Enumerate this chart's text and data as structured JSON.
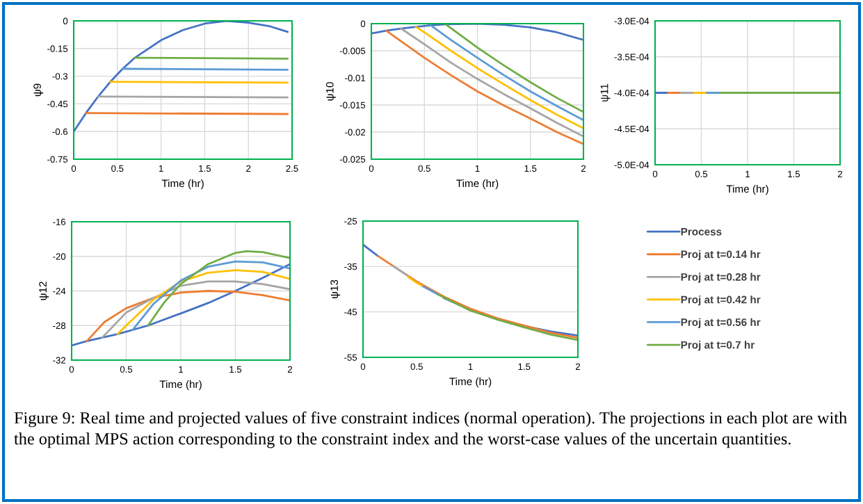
{
  "chart_data": [
    {
      "type": "line",
      "xlabel": "Time (hr)",
      "ylabel": "ψ9",
      "xlim": [
        0,
        2.5
      ],
      "ylim": [
        -0.75,
        0
      ],
      "xticks": [
        0,
        0.5,
        1,
        1.5,
        2,
        2.5
      ],
      "yticks": [
        0,
        -0.15,
        -0.3,
        -0.45,
        -0.6,
        -0.75
      ],
      "grid": true,
      "series": [
        {
          "color": "#4472c4",
          "x": [
            0,
            0.14,
            0.28,
            0.42,
            0.56,
            0.7,
            1.0,
            1.25,
            1.5,
            1.75,
            2.0,
            2.25,
            2.45
          ],
          "values": [
            -0.6,
            -0.5,
            -0.41,
            -0.33,
            -0.26,
            -0.2,
            -0.105,
            -0.05,
            -0.015,
            0,
            -0.01,
            -0.03,
            -0.06
          ]
        },
        {
          "color": "#ed7d31",
          "x": [
            0.14,
            2.45
          ],
          "values": [
            -0.5,
            -0.505
          ]
        },
        {
          "color": "#a5a5a5",
          "x": [
            0.28,
            2.45
          ],
          "values": [
            -0.41,
            -0.415
          ]
        },
        {
          "color": "#ffc000",
          "x": [
            0.42,
            2.45
          ],
          "values": [
            -0.33,
            -0.335
          ]
        },
        {
          "color": "#5b9bd5",
          "x": [
            0.56,
            2.45
          ],
          "values": [
            -0.26,
            -0.265
          ]
        },
        {
          "color": "#70ad47",
          "x": [
            0.7,
            2.45
          ],
          "values": [
            -0.2,
            -0.205
          ]
        }
      ]
    },
    {
      "type": "line",
      "xlabel": "Time (hr)",
      "ylabel": "ψ10",
      "xlim": [
        0,
        2
      ],
      "ylim": [
        -0.025,
        0
      ],
      "xticks": [
        0,
        0.5,
        1,
        1.5,
        2
      ],
      "yticks": [
        0,
        -0.005,
        -0.01,
        -0.015,
        -0.02,
        -0.025
      ],
      "grid": true,
      "series": [
        {
          "color": "#4472c4",
          "x": [
            0,
            0.14,
            0.28,
            0.42,
            0.56,
            0.7,
            1.0,
            1.25,
            1.5,
            1.75,
            2.0
          ],
          "values": [
            -0.0018,
            -0.0013,
            -0.0009,
            -0.0006,
            -0.0003,
            -0.0001,
            0,
            -0.0002,
            -0.0007,
            -0.0016,
            -0.003
          ]
        },
        {
          "color": "#ed7d31",
          "x": [
            0.14,
            0.5,
            0.75,
            1.0,
            1.25,
            1.5,
            1.75,
            2.0
          ],
          "values": [
            -0.0013,
            -0.0063,
            -0.0095,
            -0.0125,
            -0.0151,
            -0.0175,
            -0.02,
            -0.0222
          ]
        },
        {
          "color": "#a5a5a5",
          "x": [
            0.28,
            0.5,
            0.75,
            1.0,
            1.25,
            1.5,
            1.75,
            2.0
          ],
          "values": [
            -0.0009,
            -0.0038,
            -0.0072,
            -0.0102,
            -0.013,
            -0.0156,
            -0.0183,
            -0.0208
          ]
        },
        {
          "color": "#ffc000",
          "x": [
            0.42,
            0.5,
            0.75,
            1.0,
            1.25,
            1.5,
            1.75,
            2.0
          ],
          "values": [
            -0.0006,
            -0.0016,
            -0.005,
            -0.0082,
            -0.0112,
            -0.0141,
            -0.0168,
            -0.0193
          ]
        },
        {
          "color": "#5b9bd5",
          "x": [
            0.56,
            0.75,
            1.0,
            1.25,
            1.5,
            1.75,
            2.0
          ],
          "values": [
            -0.0003,
            -0.003,
            -0.0063,
            -0.0095,
            -0.0125,
            -0.0152,
            -0.0178
          ]
        },
        {
          "color": "#70ad47",
          "x": [
            0.7,
            1.0,
            1.25,
            1.5,
            1.75,
            2.0
          ],
          "values": [
            -0.0001,
            -0.0044,
            -0.0077,
            -0.0108,
            -0.0137,
            -0.0163
          ]
        }
      ]
    },
    {
      "type": "line",
      "xlabel": "Time (hr)",
      "ylabel": "ψ11",
      "xlim": [
        0,
        2
      ],
      "ylim": [
        -0.0005,
        -0.0003
      ],
      "xticks": [
        0,
        0.5,
        1,
        1.5,
        2
      ],
      "yticks": [
        {
          "value": -0.0003,
          "label": "-3.0E-04"
        },
        {
          "value": -0.00035,
          "label": "-3.5E-04"
        },
        {
          "value": -0.0004,
          "label": "-4.0E-04"
        },
        {
          "value": -0.00045,
          "label": "-4.5E-04"
        },
        {
          "value": -0.0005,
          "label": "-5.0E-04"
        }
      ],
      "grid": true,
      "series": [
        {
          "color": "#4472c4",
          "x": [
            0,
            0.14
          ],
          "values": [
            -0.0004,
            -0.0004
          ]
        },
        {
          "color": "#ed7d31",
          "x": [
            0.14,
            0.28
          ],
          "values": [
            -0.0004,
            -0.0004
          ]
        },
        {
          "color": "#a5a5a5",
          "x": [
            0.28,
            0.42
          ],
          "values": [
            -0.0004,
            -0.0004
          ]
        },
        {
          "color": "#ffc000",
          "x": [
            0.42,
            0.56
          ],
          "values": [
            -0.0004,
            -0.0004
          ]
        },
        {
          "color": "#5b9bd5",
          "x": [
            0.56,
            0.7
          ],
          "values": [
            -0.0004,
            -0.0004
          ]
        },
        {
          "color": "#70ad47",
          "x": [
            0.7,
            2
          ],
          "values": [
            -0.0004,
            -0.0004
          ]
        }
      ]
    },
    {
      "type": "line",
      "xlabel": "Time (hr)",
      "ylabel": "ψ12",
      "xlim": [
        0,
        2
      ],
      "ylim": [
        -32,
        -16
      ],
      "xticks": [
        0,
        0.5,
        1,
        1.5,
        2
      ],
      "yticks": [
        -16,
        -20,
        -24,
        -28,
        -32
      ],
      "grid": true,
      "series": [
        {
          "color": "#4472c4",
          "x": [
            0,
            0.14,
            0.28,
            0.42,
            0.56,
            0.7,
            1.0,
            1.25,
            1.5,
            1.75,
            2.0
          ],
          "values": [
            -30.3,
            -29.8,
            -29.4,
            -29.0,
            -28.5,
            -28.0,
            -26.6,
            -25.4,
            -24.0,
            -22.5,
            -20.9
          ]
        },
        {
          "color": "#ed7d31",
          "x": [
            0.14,
            0.3,
            0.5,
            0.75,
            1.0,
            1.25,
            1.5,
            1.75,
            2.0
          ],
          "values": [
            -29.8,
            -27.6,
            -26.0,
            -24.8,
            -24.2,
            -24.0,
            -24.1,
            -24.5,
            -25.1
          ]
        },
        {
          "color": "#a5a5a5",
          "x": [
            0.28,
            0.5,
            0.75,
            1.0,
            1.25,
            1.5,
            1.75,
            2.0
          ],
          "values": [
            -29.4,
            -26.5,
            -24.8,
            -23.4,
            -22.9,
            -22.9,
            -23.2,
            -23.8
          ]
        },
        {
          "color": "#ffc000",
          "x": [
            0.42,
            0.5,
            0.75,
            1.0,
            1.25,
            1.5,
            1.75,
            2.0
          ],
          "values": [
            -29.0,
            -28.0,
            -25.0,
            -22.9,
            -21.9,
            -21.6,
            -21.8,
            -22.6
          ]
        },
        {
          "color": "#5b9bd5",
          "x": [
            0.56,
            0.75,
            1.0,
            1.25,
            1.5,
            1.75,
            2.0
          ],
          "values": [
            -28.5,
            -25.5,
            -22.8,
            -21.2,
            -20.6,
            -20.7,
            -21.4
          ]
        },
        {
          "color": "#70ad47",
          "x": [
            0.7,
            0.85,
            1.0,
            1.25,
            1.5,
            1.6,
            1.75,
            2.0
          ],
          "values": [
            -28.0,
            -25.3,
            -23.2,
            -20.9,
            -19.6,
            -19.4,
            -19.5,
            -20.2
          ]
        }
      ]
    },
    {
      "type": "line",
      "xlabel": "Time (hr)",
      "ylabel": "ψ13",
      "xlim": [
        0,
        2
      ],
      "ylim": [
        -55,
        -25
      ],
      "xticks": [
        0,
        0.5,
        1,
        1.5,
        2
      ],
      "yticks": [
        -25,
        -35,
        -45,
        -55
      ],
      "grid": "y",
      "legend": "right",
      "annotations": [
        "Figure 9: Real time and projected values of five constraint indices (normal operation). The projections in each plot are with the optimal MPS action corresponding to the constraint index and the worst-case values of the uncertain quantities."
      ],
      "series": [
        {
          "name": "Process",
          "color": "#4472c4",
          "x": [
            0,
            0.14,
            0.25,
            0.5,
            0.75,
            1.0,
            1.25,
            1.5,
            1.75,
            2.0
          ],
          "values": [
            -30.2,
            -32.7,
            null,
            null,
            -41.9,
            -44.6,
            -46.6,
            -48.1,
            -49.3,
            -50.2
          ]
        },
        {
          "name": "Proj at t=0.14 hr",
          "color": "#ed7d31",
          "x": [
            0.14,
            0.5,
            0.75,
            1.0,
            1.25,
            1.5,
            1.75,
            2.0
          ],
          "values": [
            -32.7,
            -38.3,
            -41.6,
            -44.3,
            -46.4,
            -48.0,
            -49.6,
            -50.7
          ]
        },
        {
          "name": "Proj at t=0.28 hr",
          "color": "#a5a5a5",
          "x": [
            0.28,
            0.42
          ],
          "values": [
            -34.9,
            -37.1
          ]
        },
        {
          "name": "Proj at t=0.42 hr",
          "color": "#ffc000",
          "x": [
            0.42,
            0.5,
            0.56
          ],
          "values": [
            -37.3,
            -38.6,
            -39.4
          ]
        },
        {
          "name": "Proj at t=0.56 hr",
          "color": "#5b9bd5",
          "x": [
            0.56,
            0.7
          ],
          "values": [
            -39.4,
            -41.2
          ]
        },
        {
          "name": "Proj at t=0.7 hr",
          "color": "#70ad47",
          "x": [
            0.7,
            1.0,
            1.25,
            1.5,
            1.75,
            2.0
          ],
          "values": [
            -41.2,
            -44.7,
            -46.7,
            -48.4,
            -50.0,
            -51.2
          ]
        }
      ]
    }
  ]
}
